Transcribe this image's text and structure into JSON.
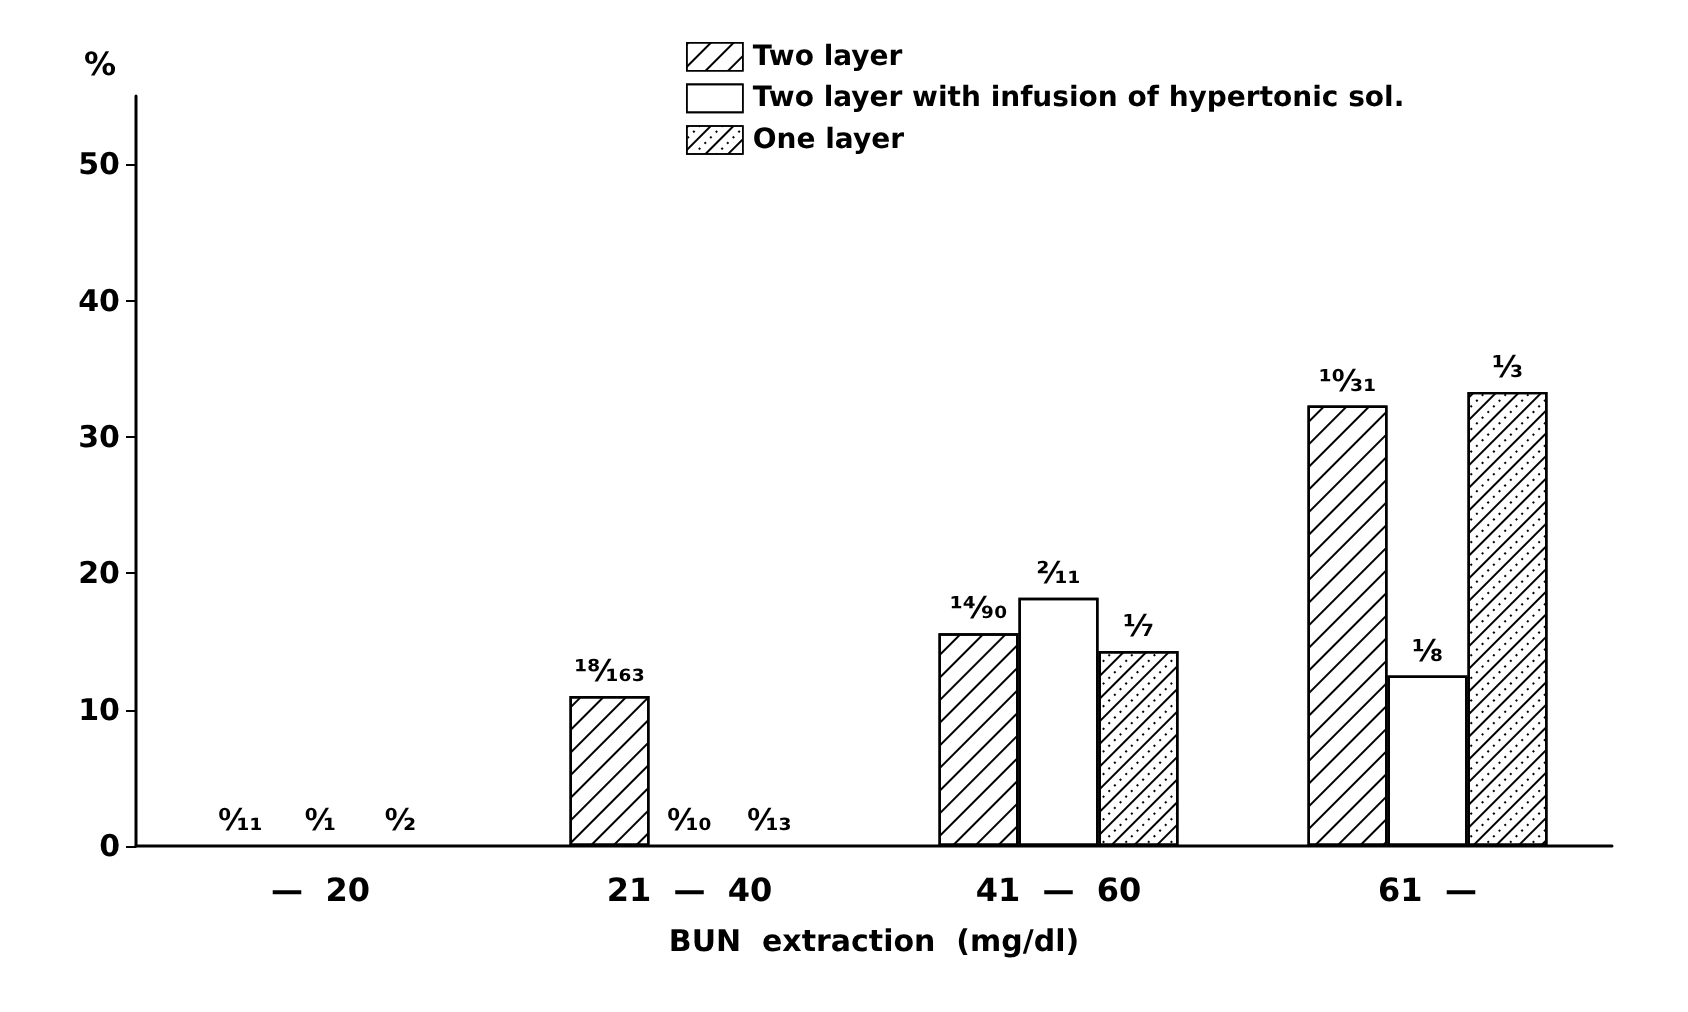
{
  "chart_data": {
    "type": "bar",
    "xlabel": "BUN  extraction  (mg/dl)",
    "ylabel": "%",
    "categories": [
      "—  20",
      "21  —  40",
      "41  —  60",
      "61  —"
    ],
    "series": [
      {
        "name": "Two layer",
        "color": "#ffffff",
        "values": [
          0,
          11.0,
          15.6,
          32.3
        ],
        "value_labels": [
          "⁰⁄₁₁",
          "¹⁸⁄₁₆₃",
          "¹⁴⁄₉₀",
          "¹⁰⁄₃₁"
        ]
      },
      {
        "name": "Two layer with infusion of hypertonic sol.",
        "color": "#ffffff",
        "values": [
          0,
          0,
          18.2,
          12.5
        ],
        "value_labels": [
          "⁰⁄₁",
          "⁰⁄₁₀",
          "²⁄₁₁",
          "¹⁄₈"
        ]
      },
      {
        "name": "One layer",
        "color": "#ffffff",
        "values": [
          0,
          0,
          14.3,
          33.3
        ],
        "value_labels": [
          "⁰⁄₂",
          "⁰⁄₁₃",
          "¹⁄₇",
          "¹⁄₃"
        ]
      }
    ],
    "ylim": [
      0,
      55
    ],
    "yticks": [
      0,
      10,
      20,
      30,
      40,
      50
    ],
    "grid": false,
    "legend": "top"
  }
}
